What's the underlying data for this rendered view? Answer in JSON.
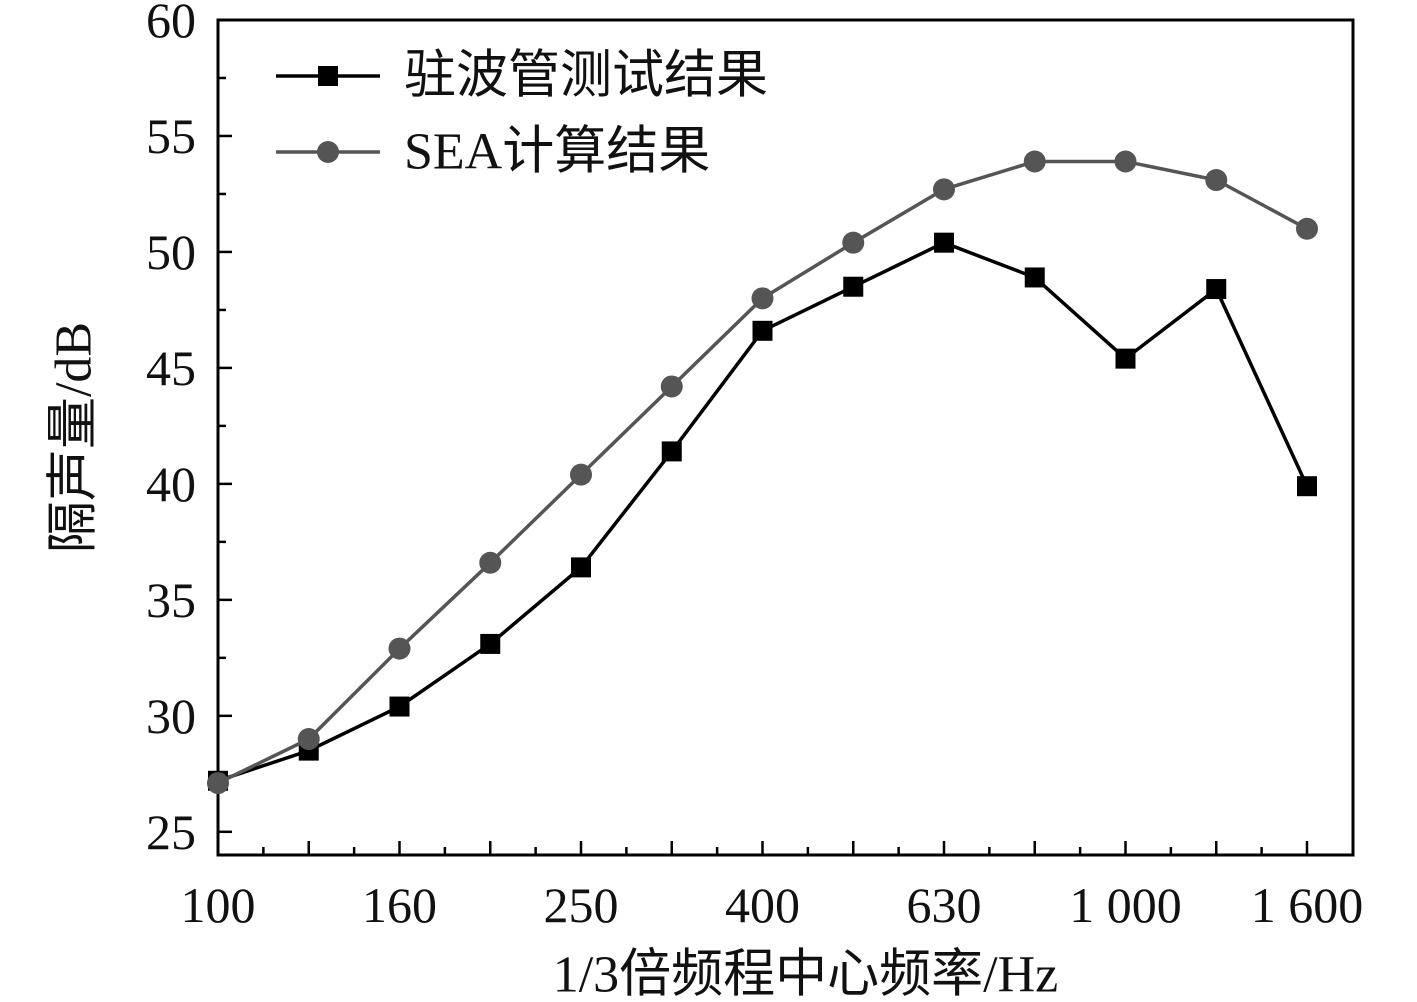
{
  "chart_data": {
    "type": "line",
    "title": "",
    "xlabel": "1/3倍频程中心频率/Hz",
    "ylabel": "隔声量/dB",
    "ylim": [
      24,
      60
    ],
    "yticks": [
      25,
      30,
      35,
      40,
      45,
      50,
      55,
      60
    ],
    "x": [
      100,
      125,
      160,
      200,
      250,
      315,
      400,
      500,
      630,
      800,
      1000,
      1250,
      1600
    ],
    "xtick_labels": [
      {
        "index": 0,
        "label": "100"
      },
      {
        "index": 2,
        "label": "160"
      },
      {
        "index": 4,
        "label": "250"
      },
      {
        "index": 6,
        "label": "400"
      },
      {
        "index": 8,
        "label": "630"
      },
      {
        "index": 10,
        "label": "1 000"
      },
      {
        "index": 12,
        "label": "1 600"
      }
    ],
    "grid": false,
    "legend_position": "top-left",
    "series": [
      {
        "name": "驻波管测试结果",
        "marker": "square",
        "color": "#000000",
        "values": [
          27.2,
          28.5,
          30.4,
          33.1,
          36.4,
          41.4,
          46.6,
          48.5,
          50.4,
          48.9,
          45.4,
          48.4,
          39.9
        ]
      },
      {
        "name": "SEA计算结果",
        "marker": "circle",
        "color": "#555555",
        "values": [
          27.1,
          29.0,
          32.9,
          36.6,
          40.4,
          44.2,
          48.0,
          50.4,
          52.7,
          53.9,
          53.9,
          53.1,
          51.0
        ]
      }
    ]
  }
}
